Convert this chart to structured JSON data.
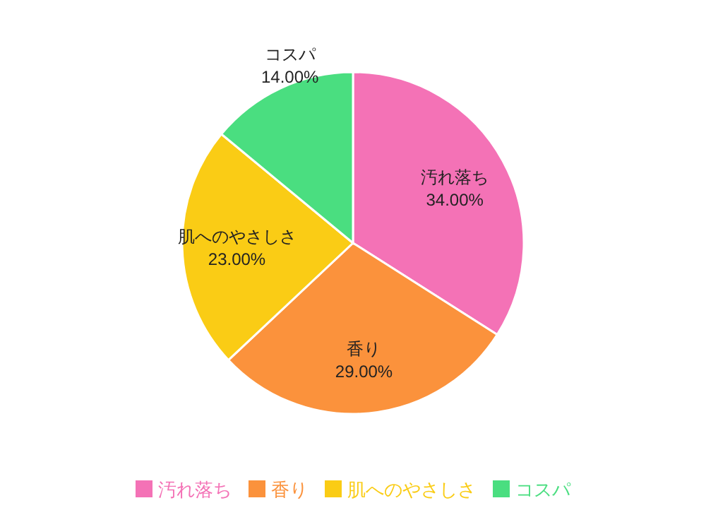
{
  "chart_data": {
    "type": "pie",
    "categories": [
      "汚れ落ち",
      "香り",
      "肌へのやさしさ",
      "コスパ"
    ],
    "values": [
      34,
      29,
      23,
      14
    ],
    "colors": [
      "#f472b6",
      "#fb923c",
      "#facc15",
      "#4ade80"
    ],
    "value_labels": [
      "34.00%",
      "29.00%",
      "23.00%",
      "14.00%"
    ],
    "legend": "bottom"
  }
}
